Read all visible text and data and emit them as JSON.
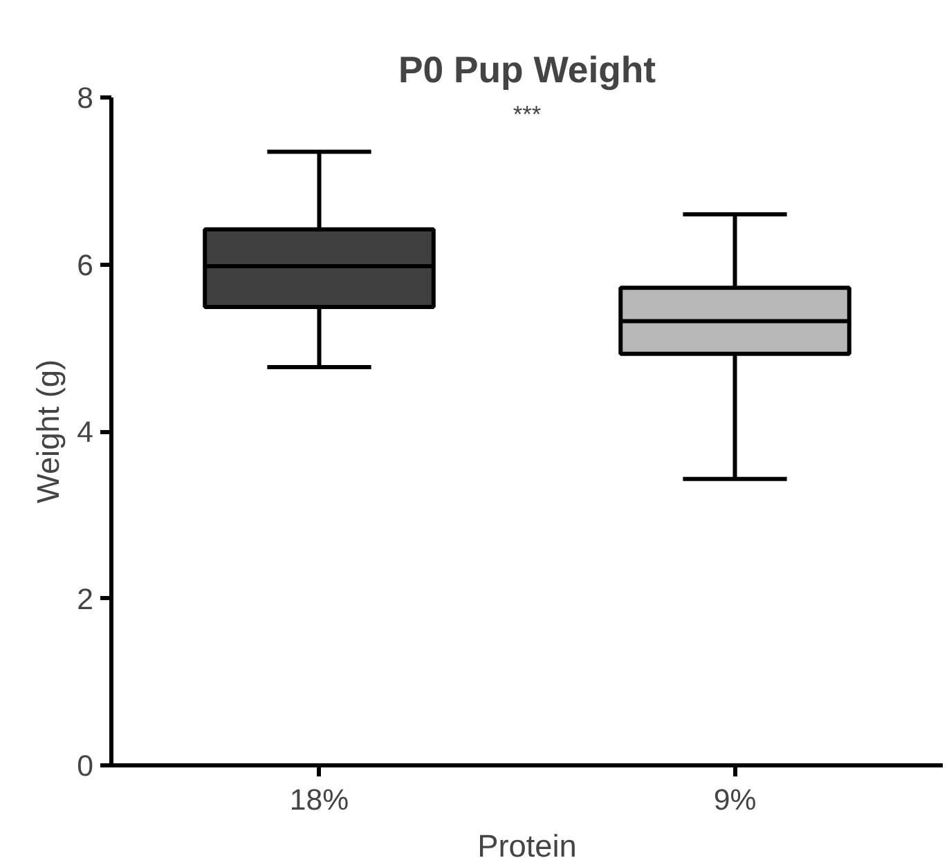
{
  "chart_data": {
    "type": "box",
    "title": "P0 Pup Weight",
    "xlabel": "Protein",
    "ylabel": "Weight (g)",
    "categories": [
      "18%",
      "9%"
    ],
    "boxes": [
      {
        "low": 4.77,
        "q1": 5.49,
        "median": 5.98,
        "q3": 6.42,
        "high": 7.35
      },
      {
        "low": 3.43,
        "q1": 4.93,
        "median": 5.32,
        "q3": 5.72,
        "high": 6.6
      }
    ],
    "colors": [
      "#404040",
      "#b8b8b8"
    ],
    "ylim": [
      0,
      8
    ],
    "yticks": [
      0,
      2,
      4,
      6,
      8
    ],
    "grid": false,
    "annotations": [
      "***"
    ]
  }
}
